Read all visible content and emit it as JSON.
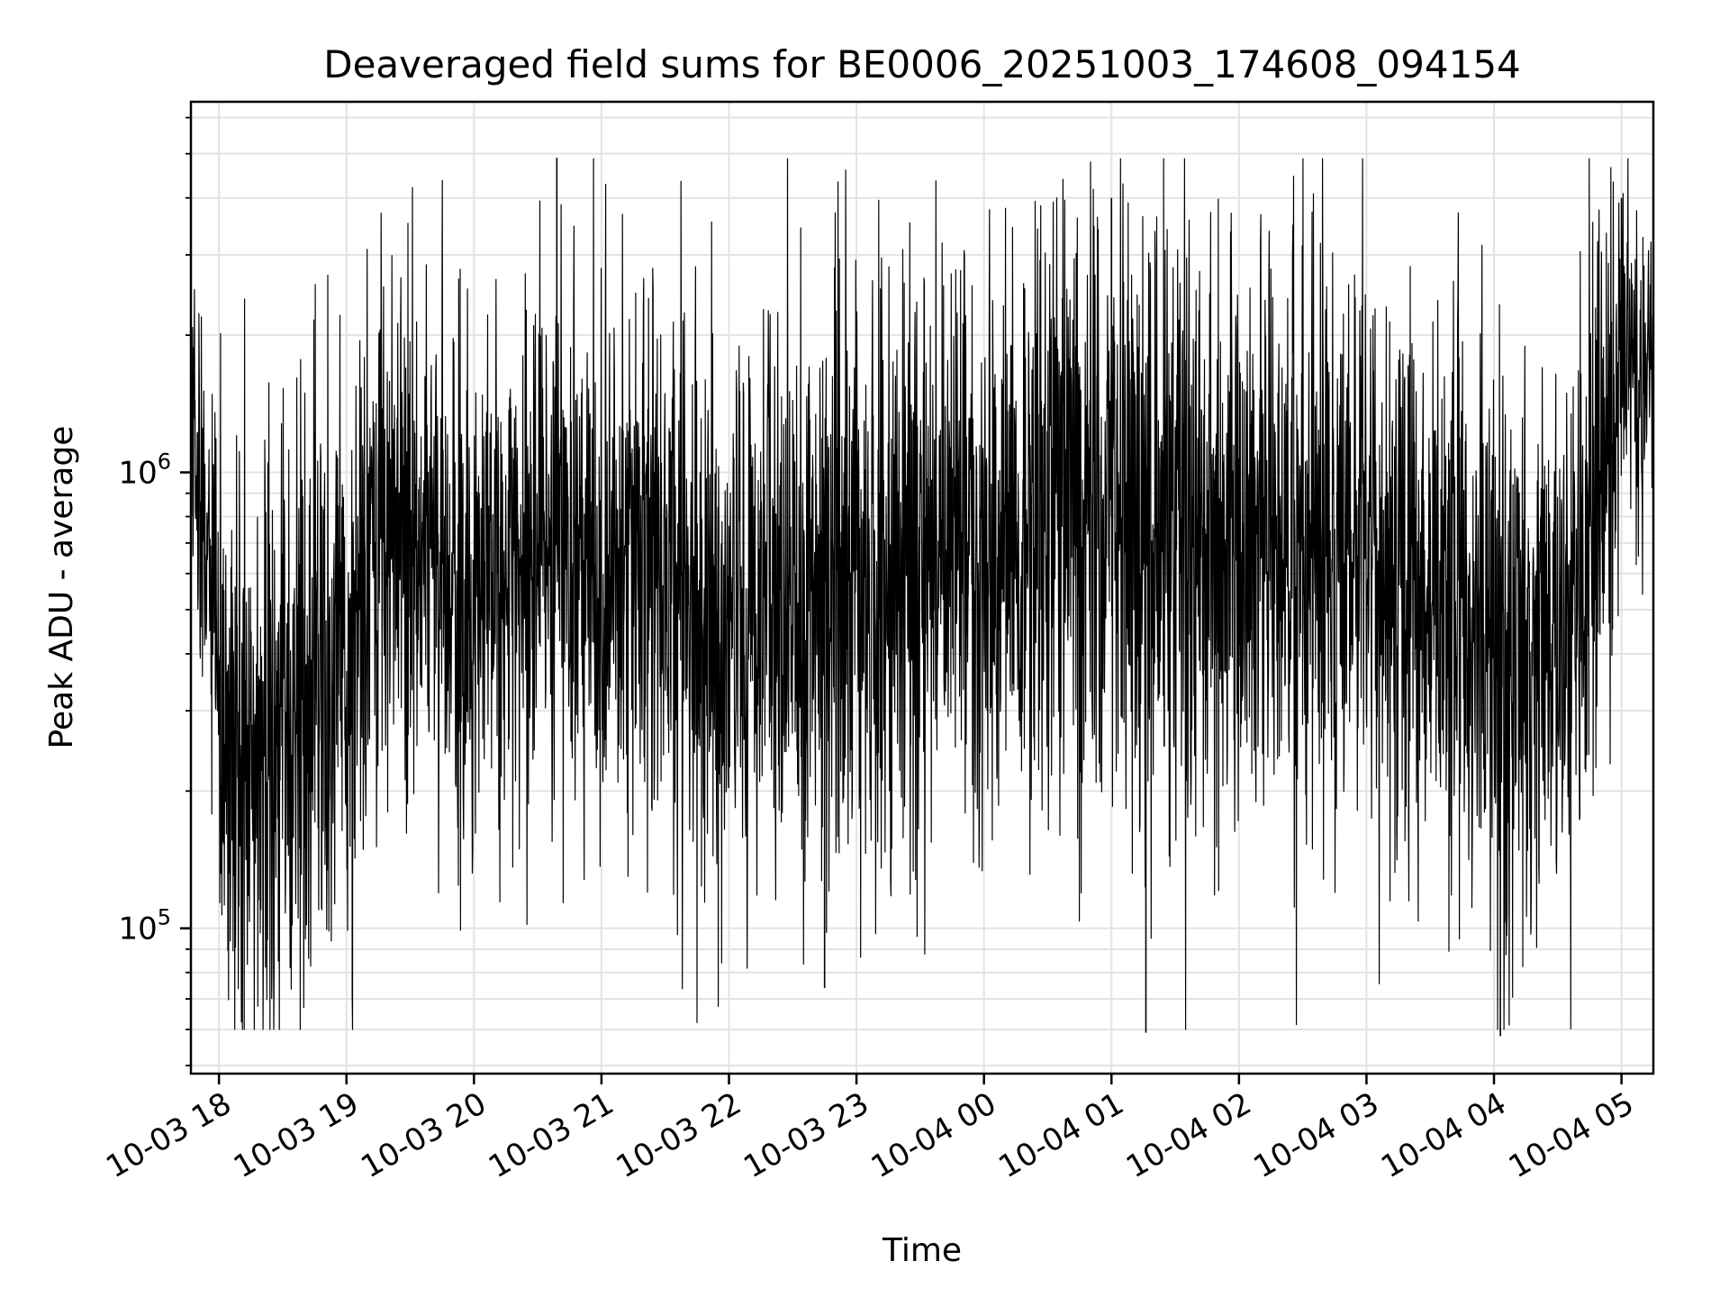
{
  "chart_data": {
    "type": "line",
    "title": "Deaveraged field sums for BE0006_20251003_174608_094154",
    "xlabel": "Time",
    "ylabel": "Peak ADU - average",
    "yscale": "log",
    "ylim": [
      48000,
      6500000
    ],
    "xlim_hours": [
      17.78,
      29.25
    ],
    "x_ticks": [
      {
        "hour": 18,
        "label": "10-03 18"
      },
      {
        "hour": 19,
        "label": "10-03 19"
      },
      {
        "hour": 20,
        "label": "10-03 20"
      },
      {
        "hour": 21,
        "label": "10-03 21"
      },
      {
        "hour": 22,
        "label": "10-03 22"
      },
      {
        "hour": 23,
        "label": "10-03 23"
      },
      {
        "hour": 24,
        "label": "10-04 00"
      },
      {
        "hour": 25,
        "label": "10-04 01"
      },
      {
        "hour": 26,
        "label": "10-04 02"
      },
      {
        "hour": 27,
        "label": "10-04 03"
      },
      {
        "hour": 28,
        "label": "10-04 04"
      },
      {
        "hour": 29,
        "label": "10-04 05"
      }
    ],
    "y_ticks": [
      {
        "value": 100000,
        "base": "10",
        "exp": "5"
      },
      {
        "value": 1000000,
        "base": "10",
        "exp": "6"
      }
    ],
    "series": [
      {
        "name": "Peak ADU - average",
        "color": "#000000",
        "envelope": {
          "description_hours": [
            17.78,
            18.0,
            18.3,
            18.6,
            19.0,
            19.3,
            19.6,
            20.0,
            20.5,
            21.0,
            22.0,
            23.0,
            24.0,
            25.0,
            26.0,
            27.0,
            28.0,
            28.6,
            29.0,
            29.25
          ],
          "median": [
            1100000,
            320000,
            200000,
            350000,
            380000,
            800000,
            650000,
            500000,
            750000,
            650000,
            500000,
            550000,
            700000,
            800000,
            750000,
            650000,
            400000,
            380000,
            1500000,
            1700000
          ],
          "spread": [
            0.18,
            0.3,
            0.35,
            0.32,
            0.3,
            0.28,
            0.28,
            0.3,
            0.3,
            0.3,
            0.32,
            0.34,
            0.33,
            0.34,
            0.33,
            0.33,
            0.33,
            0.33,
            0.25,
            0.2
          ]
        },
        "notable_values": [
          {
            "hour": 20.65,
            "value": 4900000
          },
          {
            "hour": 25.0,
            "value": 4000000
          },
          {
            "hour": 29.0,
            "value": 4000000
          },
          {
            "hour": 25.27,
            "value": 59000
          },
          {
            "hour": 28.05,
            "value": 58000
          },
          {
            "hour": 22.75,
            "value": 74000
          }
        ]
      }
    ]
  }
}
